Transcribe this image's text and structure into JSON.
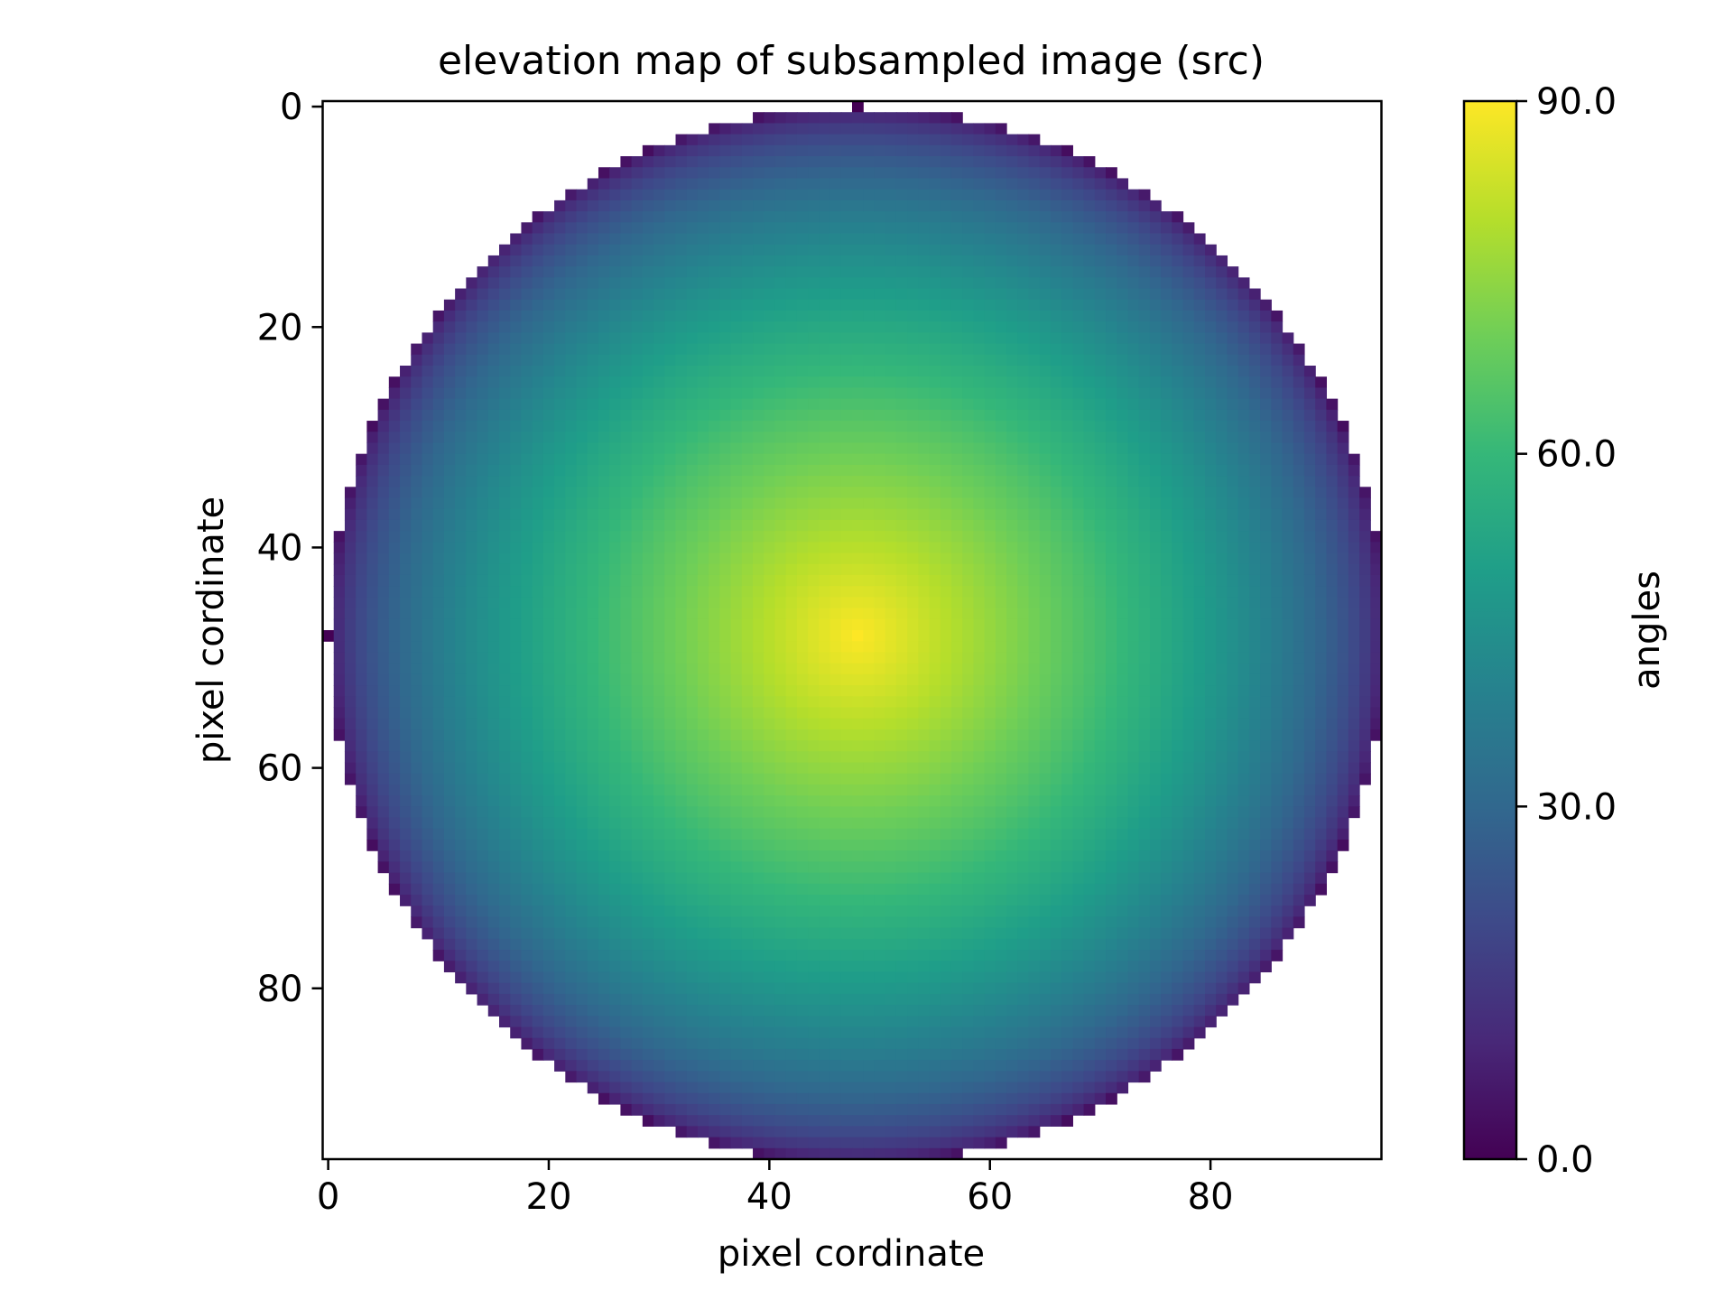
{
  "chart_data": {
    "type": "heatmap",
    "title": "elevation map of subsampled image (src)",
    "xlabel": "pixel cordinate",
    "ylabel": "pixel cordinate",
    "xlim": [
      -0.5,
      95.5
    ],
    "ylim": [
      95.5,
      -0.5
    ],
    "x_ticks": [
      0,
      20,
      40,
      60,
      80
    ],
    "y_ticks": [
      0,
      20,
      40,
      60,
      80
    ],
    "grid": false,
    "image": {
      "rows": 96,
      "cols": 96,
      "center_row": 48,
      "center_col": 48,
      "disk_radius_px": 48,
      "outside_disk": "white",
      "value_at_center": 90,
      "value_at_rim": 0,
      "value_model": "90 - asin(r/48) in degrees (elevation angle of a hemisphere)"
    },
    "colorbar": {
      "label": "angles",
      "vmin": 0,
      "vmax": 90,
      "ticks": [
        0,
        30,
        60,
        90
      ],
      "tick_labels": [
        "0.0",
        "30.0",
        "60.0",
        "90.0"
      ],
      "colormap": "viridis"
    },
    "colors": {
      "viridis": [
        "#440154",
        "#482878",
        "#3e4989",
        "#31688e",
        "#26828e",
        "#1f9e89",
        "#35b779",
        "#6ece58",
        "#b5de2b",
        "#fde725"
      ]
    }
  }
}
